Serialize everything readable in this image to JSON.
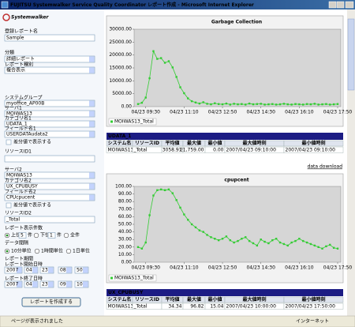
{
  "window": {
    "title": "FUJITSU Systemwalker Service Quality Coordinator レポート作成 - Microsoft Internet Explorer",
    "status": "ページが表示されました",
    "zone": "インターネット"
  },
  "logo": "Systemwalker",
  "form": {
    "report_name_label": "登録レポート名",
    "report_name": "Sample",
    "category_label": "分類",
    "category": "詳細レポート",
    "report_type_label": "レポート種別",
    "report_type": "複合表示",
    "system_group_label": "システムグループ",
    "system_group": "myoffice_AP00B",
    "server1_label": "サーバ1",
    "server1": "MOIWAS13",
    "category1_label": "カテゴリ名1",
    "category1": "UDATA_1",
    "field1_label": "フィールド名1",
    "field1": "USERDATAudata2",
    "diff1": "差分値で表示する",
    "resource1_label": "リソースID1",
    "server2_label": "サーバ2",
    "server2": "MOIWAS13",
    "category2_label": "カテゴリ名2",
    "category2": "UX_CPUBUSY",
    "field2_label": "フィールド名2",
    "field2": "CPUcpucent",
    "diff2": "差分値で表示する",
    "resource2_label": "リソースID2",
    "resource2": "_Total",
    "count_label": "レポート表示件数",
    "top": "上位",
    "top_n": "5",
    "unit1": "件",
    "bottom": "下位",
    "bottom_n": "1",
    "unit2": "件",
    "all": "全件",
    "interval_label": "データ間隔",
    "intervals": [
      "10分単位",
      "1時間単位",
      "1日単位"
    ],
    "period_label": "レポート期間",
    "start_label": "レポート開始日時",
    "start": [
      "2007",
      "04",
      "23",
      "08",
      "50"
    ],
    "end_label": "レポート終了日時",
    "end": [
      "2007",
      "04",
      "23",
      "09",
      "10"
    ],
    "submit": "レポートを作成する"
  },
  "download": "data download",
  "chart_data": [
    {
      "type": "line",
      "title": "Garbage Collection",
      "categories": [
        null,
        null,
        "04/23 09:30",
        null,
        null,
        null,
        null,
        null,
        null,
        null,
        null,
        null,
        "04/23 11:10",
        null,
        null,
        null,
        null,
        null,
        null,
        null,
        null,
        null,
        "04/23 12:50",
        null,
        null,
        null,
        null,
        null,
        null,
        null,
        null,
        null,
        "04/23 14:30",
        null,
        null,
        null,
        null,
        null,
        null,
        null,
        null,
        null,
        "04/23 16:10",
        null,
        null,
        null,
        null,
        null,
        null,
        null,
        null,
        null,
        "04/23 17:50"
      ],
      "series": [
        {
          "name": "MOIWAS13_Total",
          "color": "#33cc33",
          "values": [
            1000,
            1500,
            3500,
            11000,
            21500,
            18500,
            18800,
            17000,
            17600,
            15200,
            11500,
            7500,
            5200,
            3200,
            2100,
            1600,
            1200,
            1700,
            1100,
            900,
            1300,
            1000,
            900,
            1200,
            800,
            1100,
            900,
            1000,
            800,
            1200,
            900,
            1000,
            1100,
            800,
            900,
            1000,
            800,
            900,
            1100,
            900,
            800,
            1000,
            900,
            800,
            1000,
            900,
            1100,
            800,
            900,
            1000,
            800,
            900,
            1000
          ]
        }
      ],
      "ylim": [
        0,
        30000
      ],
      "yticks": [
        {
          "value": 0,
          "label": "0.00"
        },
        {
          "value": 5000,
          "label": "5000.00"
        },
        {
          "value": 10000,
          "label": "10000.00"
        },
        {
          "value": 15000,
          "label": "15000.00"
        },
        {
          "value": 20000,
          "label": "20000.00"
        },
        {
          "value": 25000,
          "label": "25000.00"
        },
        {
          "value": 30000,
          "label": "30000.00"
        }
      ],
      "grid": false
    },
    {
      "type": "line",
      "title": "cpupcent",
      "categories": [
        null,
        null,
        "04/23 09:30",
        null,
        null,
        null,
        null,
        null,
        null,
        null,
        null,
        null,
        "04/23 11:10",
        null,
        null,
        null,
        null,
        null,
        null,
        null,
        null,
        null,
        "04/23 12:50",
        null,
        null,
        null,
        null,
        null,
        null,
        null,
        null,
        null,
        "04/23 14:30",
        null,
        null,
        null,
        null,
        null,
        null,
        null,
        null,
        null,
        "04/23 16:10",
        null,
        null,
        null,
        null,
        null,
        null,
        null,
        null,
        null,
        "04/23 17:50"
      ],
      "series": [
        {
          "name": "MOIWAS13_Total",
          "color": "#33cc33",
          "values": [
            20,
            18,
            26,
            62,
            88,
            95,
            96,
            95,
            96,
            91,
            82,
            72,
            63,
            56,
            50,
            46,
            42,
            40,
            36,
            33,
            31,
            29,
            31,
            34,
            29,
            26,
            28,
            31,
            33,
            28,
            25,
            22,
            30,
            27,
            25,
            29,
            31,
            26,
            24,
            22,
            26,
            28,
            31,
            28,
            26,
            24,
            22,
            20,
            18,
            21,
            23,
            19,
            18
          ]
        }
      ],
      "ylim": [
        0,
        100
      ],
      "yticks": [
        {
          "value": 0,
          "label": "0.00"
        },
        {
          "value": 10,
          "label": "10.00"
        },
        {
          "value": 20,
          "label": "20.00"
        },
        {
          "value": 30,
          "label": "30.00"
        },
        {
          "value": 40,
          "label": "40.00"
        },
        {
          "value": 50,
          "label": "50.00"
        },
        {
          "value": 60,
          "label": "60.00"
        },
        {
          "value": 70,
          "label": "70.00"
        },
        {
          "value": 80,
          "label": "80.00"
        },
        {
          "value": 90,
          "label": "90.00"
        },
        {
          "value": 100,
          "label": "100.00"
        }
      ],
      "grid": false
    }
  ],
  "tables": [
    {
      "title": "UDATA_1",
      "columns": [
        "システム名",
        "リソースID",
        "平均値",
        "最大値",
        "最小値",
        "最大値時刻",
        "最小値時刻"
      ],
      "rows": [
        [
          "MOIWAS13",
          "_Total",
          "3058.91",
          "21,759.00",
          "0.00",
          "2007/04/23 09:10:00",
          "2007/04/23 09:10:00"
        ]
      ]
    },
    {
      "title": "UX_CPUBUSY",
      "columns": [
        "システム名",
        "リソースID",
        "平均値",
        "最大値",
        "最小値",
        "最大値時刻",
        "最小値時刻"
      ],
      "rows": [
        [
          "MOIWAS13",
          "_Total",
          "34.34",
          "96.82",
          "15.04",
          "2007/04/23 10:00:00",
          "2007/04/23 17:50:00"
        ]
      ]
    }
  ]
}
